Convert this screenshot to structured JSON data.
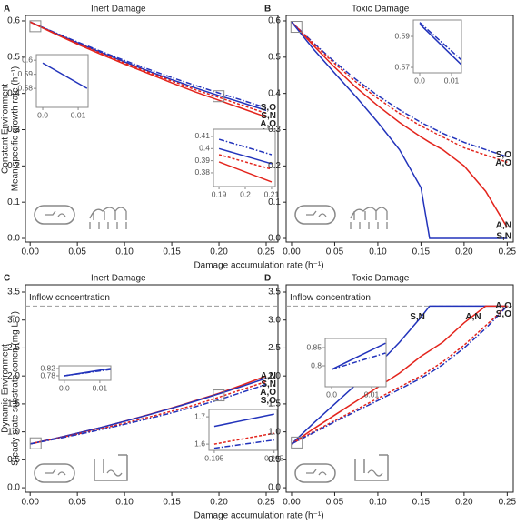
{
  "chart_data": [
    {
      "type": "line",
      "letter": "A",
      "title": "Inert Damage",
      "row_label": "Constant Environment",
      "ylabel": "Mean specific growth rate (h⁻¹)",
      "xlabel": "Damage accumulation rate (h⁻¹)",
      "xlim": [
        -0.005,
        0.2625
      ],
      "ylim": [
        -0.01,
        0.615
      ],
      "xticks": [
        {
          "value": 0,
          "label": "0.00"
        },
        {
          "value": 0.05,
          "label": "0.05"
        },
        {
          "value": 0.1,
          "label": "0.10"
        },
        {
          "value": 0.15,
          "label": "0.15"
        },
        {
          "value": 0.2,
          "label": "0.20"
        },
        {
          "value": 0.25,
          "label": "0.25"
        }
      ],
      "yticks": [
        {
          "value": 0,
          "label": "0.0"
        },
        0.1,
        0.2,
        0.3,
        0.4,
        0.5,
        0.6
      ],
      "x": [
        0,
        0.025,
        0.05,
        0.075,
        0.1,
        0.125,
        0.15,
        0.16,
        0.175,
        0.2,
        0.225,
        0.25
      ],
      "series": [
        {
          "name": "S,O",
          "color": "#2233bb",
          "dash": "dashdot",
          "values": [
            0.597,
            0.569,
            0.542,
            0.516,
            0.491,
            0.467,
            0.444,
            0.435,
            0.422,
            0.401,
            0.381,
            0.36
          ]
        },
        {
          "name": "S,N",
          "color": "#2233bb",
          "dash": "solid",
          "values": [
            0.597,
            0.568,
            0.54,
            0.513,
            0.487,
            0.462,
            0.438,
            0.429,
            0.415,
            0.394,
            0.374,
            0.353
          ]
        },
        {
          "name": "A,O",
          "color": "#e3241c",
          "dash": "dashed",
          "values": [
            0.597,
            0.567,
            0.538,
            0.511,
            0.484,
            0.459,
            0.434,
            0.425,
            0.41,
            0.389,
            0.367,
            0.345
          ]
        },
        {
          "name": "A,N",
          "color": "#e3241c",
          "dash": "solid",
          "values": [
            0.597,
            0.566,
            0.536,
            0.508,
            0.481,
            0.455,
            0.429,
            0.419,
            0.404,
            0.381,
            0.358,
            0.335
          ]
        }
      ],
      "insets": [
        {
          "xlim": [
            -0.0018,
            0.0128
          ],
          "ylim": [
            0.5665,
            0.604
          ],
          "xticks": [
            {
              "value": 0,
              "label": "0.0"
            },
            0.01
          ],
          "yticks": [
            0.58,
            0.59,
            0.6
          ],
          "x": [
            0,
            0.0125
          ],
          "series": [
            {
              "color": "#2233bb",
              "dash": "solid",
              "values": [
                0.598,
                0.58
              ]
            }
          ]
        },
        {
          "xlim": [
            0.1879,
            0.2114
          ],
          "ylim": [
            0.3687,
            0.416
          ],
          "xticks": [
            0.19,
            0.2,
            0.21
          ],
          "yticks": [
            0.38,
            0.39,
            0.4,
            0.41
          ],
          "x": [
            0.19,
            0.21
          ],
          "series": [
            {
              "color": "#2233bb",
              "dash": "dashdot",
              "values": [
                0.4077,
                0.395
              ]
            },
            {
              "color": "#2233bb",
              "dash": "solid",
              "values": [
                0.4,
                0.3875
              ]
            },
            {
              "color": "#e3241c",
              "dash": "dashed",
              "values": [
                0.395,
                0.383
              ]
            },
            {
              "color": "#e3241c",
              "dash": "solid",
              "values": [
                0.389,
                0.3725
              ]
            }
          ]
        }
      ]
    },
    {
      "type": "line",
      "letter": "B",
      "title": "Toxic Damage",
      "xlim": [
        -0.0063,
        0.257
      ],
      "ylim": [
        -0.01,
        0.615
      ],
      "xticks": [
        {
          "value": 0,
          "label": "0.00"
        },
        {
          "value": 0.05,
          "label": "0.05"
        },
        {
          "value": 0.1,
          "label": "0.10"
        },
        {
          "value": 0.15,
          "label": "0.15"
        },
        {
          "value": 0.2,
          "label": "0.20"
        },
        {
          "value": 0.25,
          "label": "0.25"
        }
      ],
      "yticks": [
        {
          "value": 0,
          "label": "0.0"
        },
        0.1,
        0.2,
        0.3,
        0.4,
        0.5,
        0.6
      ],
      "x": [
        0,
        0.025,
        0.05,
        0.075,
        0.1,
        0.125,
        0.15,
        0.16,
        0.175,
        0.2,
        0.225,
        0.25
      ],
      "series": [
        {
          "name": "S,O",
          "color": "#2233bb",
          "dash": "dashdot",
          "values": [
            0.597,
            0.54,
            0.487,
            0.438,
            0.394,
            0.355,
            0.32,
            0.308,
            0.29,
            0.265,
            0.245,
            0.225
          ]
        },
        {
          "name": "A,O",
          "color": "#e3241c",
          "dash": "dashed",
          "values": [
            0.597,
            0.538,
            0.482,
            0.431,
            0.386,
            0.345,
            0.31,
            0.298,
            0.28,
            0.25,
            0.23,
            0.21
          ]
        },
        {
          "name": "A,N",
          "color": "#e3241c",
          "dash": "solid",
          "values": [
            0.597,
            0.533,
            0.472,
            0.416,
            0.366,
            0.32,
            0.28,
            0.265,
            0.245,
            0.2,
            0.13,
            0.03
          ]
        },
        {
          "name": "S,N",
          "color": "#2233bb",
          "dash": "solid",
          "values": [
            0.597,
            0.523,
            0.456,
            0.39,
            0.32,
            0.245,
            0.14,
            0,
            0,
            0,
            0,
            0
          ]
        }
      ],
      "insets": [
        {
          "xlim": [
            -0.002,
            0.01314
          ],
          "ylim": [
            0.5665,
            0.6006
          ],
          "xticks": [
            {
              "value": 0,
              "label": "0.0"
            },
            0.01
          ],
          "yticks": [
            0.57,
            0.59
          ],
          "x": [
            0,
            0.013
          ],
          "series": [
            {
              "color": "#2233bb",
              "dash": "dashdot",
              "values": [
                0.599,
                0.575
              ]
            },
            {
              "color": "#2233bb",
              "dash": "solid",
              "values": [
                0.598,
                0.572
              ]
            }
          ]
        }
      ]
    },
    {
      "type": "line",
      "letter": "C",
      "title": "Inert Damage",
      "row_label": "Dynamic Environment",
      "ylabel": "Steady-state substrate concn (mg L⁻¹)",
      "xlabel": "Damage accumulation rate (h⁻¹)",
      "xlim": [
        -0.005,
        0.2625
      ],
      "ylim": [
        -0.08,
        3.63
      ],
      "hline": {
        "value": 3.25,
        "label": "Inflow concentration"
      },
      "xticks": [
        {
          "value": 0,
          "label": "0.00"
        },
        {
          "value": 0.05,
          "label": "0.05"
        },
        {
          "value": 0.1,
          "label": "0.10"
        },
        {
          "value": 0.15,
          "label": "0.15"
        },
        {
          "value": 0.2,
          "label": "0.20"
        },
        {
          "value": 0.25,
          "label": "0.25"
        }
      ],
      "yticks": [
        {
          "value": 0,
          "label": "0.0"
        },
        0.5,
        {
          "value": 1,
          "label": "1.0"
        },
        1.5,
        {
          "value": 2,
          "label": "2.0"
        },
        2.5,
        {
          "value": 3,
          "label": "3.0"
        },
        3.5
      ],
      "x": [
        0,
        0.025,
        0.05,
        0.075,
        0.1,
        0.125,
        0.15,
        0.16,
        0.175,
        0.2,
        0.225,
        0.25
      ],
      "series": [
        {
          "name": "A,N",
          "color": "#e3241c",
          "dash": "solid",
          "values": [
            0.785,
            0.877,
            0.975,
            1.078,
            1.19,
            1.305,
            1.427,
            1.478,
            1.557,
            1.69,
            1.84,
            2.0
          ]
        },
        {
          "name": "S,N",
          "color": "#2233bb",
          "dash": "solid",
          "values": [
            0.785,
            0.877,
            0.975,
            1.078,
            1.188,
            1.302,
            1.422,
            1.472,
            1.549,
            1.68,
            1.817,
            1.96
          ]
        },
        {
          "name": "A,O",
          "color": "#e3241c",
          "dash": "dashed",
          "values": [
            0.785,
            0.87,
            0.96,
            1.055,
            1.155,
            1.26,
            1.37,
            1.415,
            1.485,
            1.62,
            1.76,
            1.9
          ]
        },
        {
          "name": "S,O",
          "color": "#2233bb",
          "dash": "dashdot",
          "values": [
            0.785,
            0.865,
            0.95,
            1.04,
            1.135,
            1.235,
            1.34,
            1.385,
            1.45,
            1.575,
            1.71,
            1.85
          ]
        }
      ],
      "insets": [
        {
          "xlim": [
            -0.0015,
            0.0131
          ],
          "ylim": [
            0.755,
            0.835
          ],
          "xticks": [
            {
              "value": 0,
              "label": "0.0"
            },
            0.01
          ],
          "yticks": [
            0.78,
            0.82
          ],
          "x": [
            0,
            0.013
          ],
          "series": [
            {
              "color": "#2233bb",
              "dash": "solid",
              "values": [
                0.78,
                0.82
              ]
            },
            {
              "color": "#2233bb",
              "dash": "dashdot",
              "values": [
                0.78,
                0.815
              ]
            }
          ]
        },
        {
          "xlim": [
            0.1941,
            0.2055
          ],
          "ylim": [
            1.577,
            1.727
          ],
          "xticks": [
            0.195,
            0.205
          ],
          "yticks": [
            1.6,
            1.7
          ],
          "x": [
            0.195,
            0.205
          ],
          "series": [
            {
              "color": "#2233bb",
              "dash": "solid",
              "values": [
                1.665,
                1.71
              ]
            },
            {
              "color": "#e3241c",
              "dash": "dashed",
              "values": [
                1.6,
                1.64
              ]
            },
            {
              "color": "#2233bb",
              "dash": "dashdot",
              "values": [
                1.585,
                1.615
              ]
            }
          ]
        }
      ]
    },
    {
      "type": "line",
      "letter": "D",
      "title": "Toxic Damage",
      "xlim": [
        -0.0063,
        0.257
      ],
      "ylim": [
        -0.08,
        3.63
      ],
      "hline": {
        "value": 3.25,
        "label": "Inflow concentration"
      },
      "xticks": [
        {
          "value": 0,
          "label": "0.00"
        },
        {
          "value": 0.05,
          "label": "0.05"
        },
        {
          "value": 0.1,
          "label": "0.10"
        },
        {
          "value": 0.15,
          "label": "0.15"
        },
        {
          "value": 0.2,
          "label": "0.20"
        },
        {
          "value": 0.25,
          "label": "0.25"
        }
      ],
      "yticks": [
        {
          "value": 0,
          "label": "0.0"
        },
        0.5,
        {
          "value": 1,
          "label": "1.0"
        },
        1.5,
        {
          "value": 2,
          "label": "2.0"
        },
        2.5,
        {
          "value": 3,
          "label": "3.0"
        },
        3.5
      ],
      "x": [
        0,
        0.025,
        0.05,
        0.075,
        0.1,
        0.125,
        0.15,
        0.16,
        0.175,
        0.2,
        0.225,
        0.25
      ],
      "series": [
        {
          "name": "S,N",
          "color": "#2233bb",
          "dash": "solid",
          "values": [
            0.785,
            1.15,
            1.5,
            1.85,
            2.2,
            2.6,
            3.05,
            3.25,
            3.25,
            3.25,
            3.25,
            3.25
          ]
        },
        {
          "name": "A,N",
          "color": "#e3241c",
          "dash": "solid",
          "values": [
            0.785,
            1.05,
            1.3,
            1.55,
            1.8,
            2.05,
            2.35,
            2.45,
            2.6,
            2.95,
            3.25,
            3.25
          ]
        },
        {
          "name": "A,O",
          "color": "#e3241c",
          "dash": "dashed",
          "values": [
            0.785,
            1.0,
            1.2,
            1.4,
            1.6,
            1.8,
            2.0,
            2.1,
            2.25,
            2.55,
            2.9,
            3.25
          ]
        },
        {
          "name": "S,O",
          "color": "#2233bb",
          "dash": "dashdot",
          "values": [
            0.785,
            0.98,
            1.18,
            1.37,
            1.56,
            1.76,
            1.96,
            2.05,
            2.2,
            2.5,
            2.85,
            3.25
          ]
        }
      ],
      "insets": [
        {
          "xlim": [
            -0.0016,
            0.01364
          ],
          "ylim": [
            0.7425,
            0.875
          ],
          "xticks": [
            {
              "value": 0,
              "label": "0.0"
            },
            0.01
          ],
          "yticks": [
            0.8,
            0.85
          ],
          "x": [
            0,
            0.0135
          ],
          "series": [
            {
              "color": "#2233bb",
              "dash": "solid",
              "values": [
                0.79,
                0.862
              ]
            },
            {
              "color": "#2233bb",
              "dash": "dashdot",
              "values": [
                0.79,
                0.835
              ]
            }
          ]
        }
      ]
    }
  ]
}
